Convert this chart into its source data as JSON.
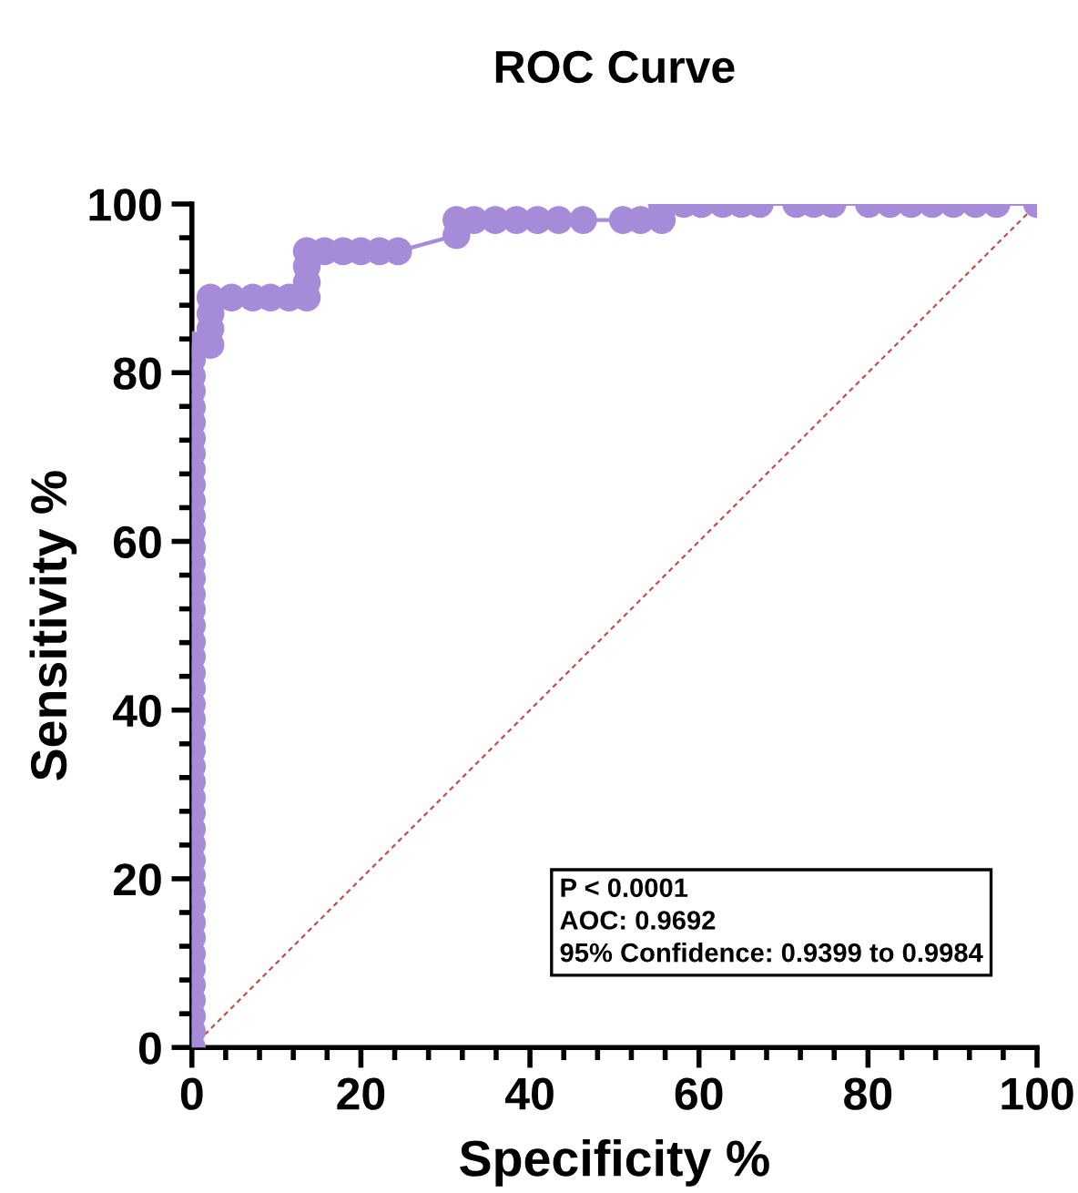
{
  "chart_data": {
    "type": "line",
    "title": "ROC Curve",
    "xlabel": "Specificity %",
    "ylabel": "Sensitivity %",
    "xlim": [
      0,
      100
    ],
    "ylim": [
      0,
      100
    ],
    "xticks": [
      0,
      {
        "value": 4,
        "label": null
      },
      {
        "value": 8,
        "label": null
      },
      {
        "value": 12,
        "label": null
      },
      {
        "value": 16,
        "label": null
      },
      20,
      {
        "value": 24,
        "label": null
      },
      {
        "value": 28,
        "label": null
      },
      {
        "value": 32,
        "label": null
      },
      {
        "value": 36,
        "label": null
      },
      40,
      {
        "value": 44,
        "label": null
      },
      {
        "value": 48,
        "label": null
      },
      {
        "value": 52,
        "label": null
      },
      {
        "value": 56,
        "label": null
      },
      60,
      {
        "value": 64,
        "label": null
      },
      {
        "value": 68,
        "label": null
      },
      {
        "value": 72,
        "label": null
      },
      {
        "value": 76,
        "label": null
      },
      80,
      {
        "value": 84,
        "label": null
      },
      {
        "value": 88,
        "label": null
      },
      {
        "value": 92,
        "label": null
      },
      {
        "value": 96,
        "label": null
      },
      100
    ],
    "yticks": [
      0,
      {
        "value": 4,
        "label": null
      },
      {
        "value": 8,
        "label": null
      },
      {
        "value": 12,
        "label": null
      },
      {
        "value": 16,
        "label": null
      },
      20,
      {
        "value": 24,
        "label": null
      },
      {
        "value": 28,
        "label": null
      },
      {
        "value": 32,
        "label": null
      },
      {
        "value": 36,
        "label": null
      },
      40,
      {
        "value": 44,
        "label": null
      },
      {
        "value": 48,
        "label": null
      },
      {
        "value": 52,
        "label": null
      },
      {
        "value": 56,
        "label": null
      },
      60,
      {
        "value": 64,
        "label": null
      },
      {
        "value": 68,
        "label": null
      },
      {
        "value": 72,
        "label": null
      },
      {
        "value": 76,
        "label": null
      },
      80,
      {
        "value": 84,
        "label": null
      },
      {
        "value": 88,
        "label": null
      },
      {
        "value": 92,
        "label": null
      },
      {
        "value": 96,
        "label": null
      },
      100
    ],
    "grid": false,
    "legend": false,
    "series": [
      {
        "color": "#a68bd8",
        "marker": "circle",
        "line_style": "solid",
        "x": [
          0,
          0,
          0,
          0,
          0,
          0,
          0,
          0,
          0,
          0,
          0,
          0,
          0,
          0,
          0,
          0,
          0,
          0,
          0,
          0,
          0,
          0,
          0,
          0,
          0,
          0,
          0,
          0,
          0,
          0,
          0,
          0,
          0,
          0,
          0,
          0,
          0,
          0,
          0,
          0,
          0,
          0,
          0,
          0,
          0,
          0,
          2.2,
          2.2,
          2.2,
          2.2,
          4.7,
          7.2,
          9.3,
          11.5,
          13.6,
          13.6,
          13.6,
          13.6,
          15.7,
          17.9,
          20.0,
          22.2,
          24.4,
          31.3,
          31.3,
          33.4,
          35.9,
          38.4,
          40.9,
          43.4,
          46.3,
          51.0,
          53.1,
          55.6,
          55.6,
          58.2,
          60.3,
          62.8,
          65.0,
          67.2,
          71.5,
          73.6,
          75.8,
          80.1,
          82.6,
          85.1,
          87.6,
          90.1,
          92.7,
          95.2,
          100
        ],
        "values": [
          0,
          1.9,
          3.7,
          5.6,
          7.4,
          9.3,
          11.1,
          13.0,
          14.8,
          16.7,
          18.5,
          20.4,
          22.2,
          24.1,
          25.9,
          27.8,
          29.6,
          31.5,
          33.3,
          35.2,
          37.0,
          38.9,
          40.7,
          42.6,
          44.4,
          46.3,
          48.1,
          50.0,
          51.9,
          53.7,
          55.6,
          57.4,
          59.3,
          61.1,
          63.0,
          64.8,
          66.7,
          68.5,
          70.4,
          72.2,
          74.1,
          75.9,
          77.8,
          79.6,
          81.5,
          83.3,
          83.3,
          85.2,
          87.0,
          88.9,
          88.9,
          88.9,
          88.9,
          88.9,
          88.9,
          90.7,
          92.6,
          94.4,
          94.4,
          94.4,
          94.4,
          94.4,
          94.4,
          96.3,
          98.1,
          98.1,
          98.1,
          98.1,
          98.1,
          98.1,
          98.1,
          98.1,
          98.1,
          98.1,
          100,
          100,
          100,
          100,
          100,
          100,
          100,
          100,
          100,
          100,
          100,
          100,
          100,
          100,
          100,
          100,
          100
        ]
      },
      {
        "color": "#c0504d",
        "marker": "none",
        "line_style": "dashed",
        "x": [
          0,
          100
        ],
        "values": [
          0,
          100
        ]
      }
    ],
    "annotations": [
      "P < 0.0001",
      "AOC: 0.9692",
      "95% Confidence: 0.9399 to 0.9984"
    ]
  }
}
